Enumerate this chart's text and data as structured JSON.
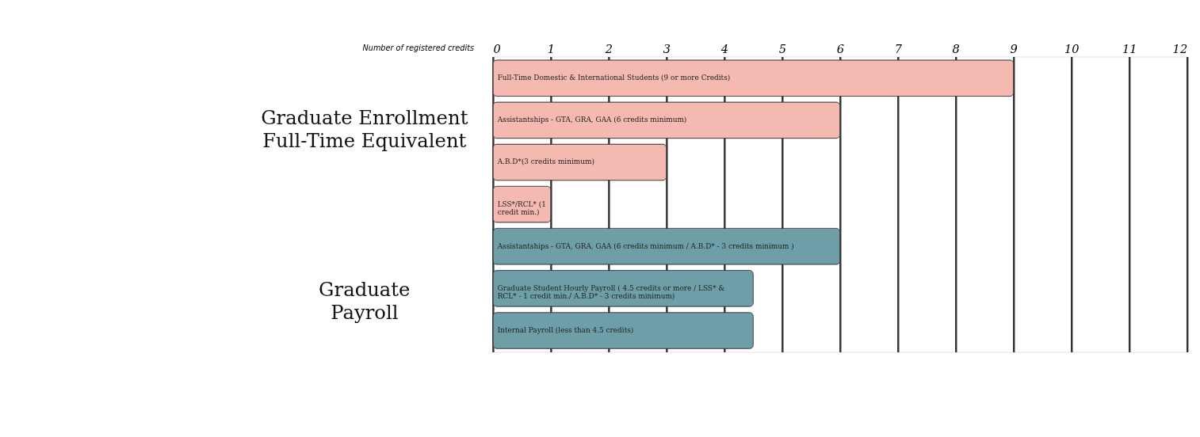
{
  "chart_data": {
    "type": "bar",
    "orientation": "horizontal",
    "xlabel": "Number of registered credits",
    "categories": [
      "Full-Time Domestic & International Students (9 or more Credits)",
      "Assistantships - GTA, GRA, GAA (6 credits minimum)",
      "A.B.D*(3 credits minimum)",
      "LSS*/RCL* (1 credit min.)",
      "Assistantships - GTA, GRA, GAA (6 credits minimum / A.B.D* - 3 credits minimum )",
      "Graduate Student Hourly Payroll ( 4.5 credits or more / LSS* & RCL* - 1 credit min./ A.B.D* - 3 credits minimum)",
      "Internal Payroll (less than 4.5 credits)"
    ],
    "values": [
      9,
      6,
      3,
      1,
      6,
      4.5,
      4.5
    ],
    "colors": [
      "#f4b9b0",
      "#f4b9b0",
      "#f4b9b0",
      "#f4b9b0",
      "#6e9fa8",
      "#6e9fa8",
      "#6e9fa8"
    ],
    "xlim": [
      0,
      12
    ],
    "xticks": [
      0,
      1,
      2,
      3,
      4,
      5,
      6,
      7,
      8,
      9,
      10,
      11,
      12
    ],
    "grid": "x",
    "annotations": [
      "Graduate Enrollment Full-Time Equivalent",
      "Graduate Payroll"
    ]
  }
}
